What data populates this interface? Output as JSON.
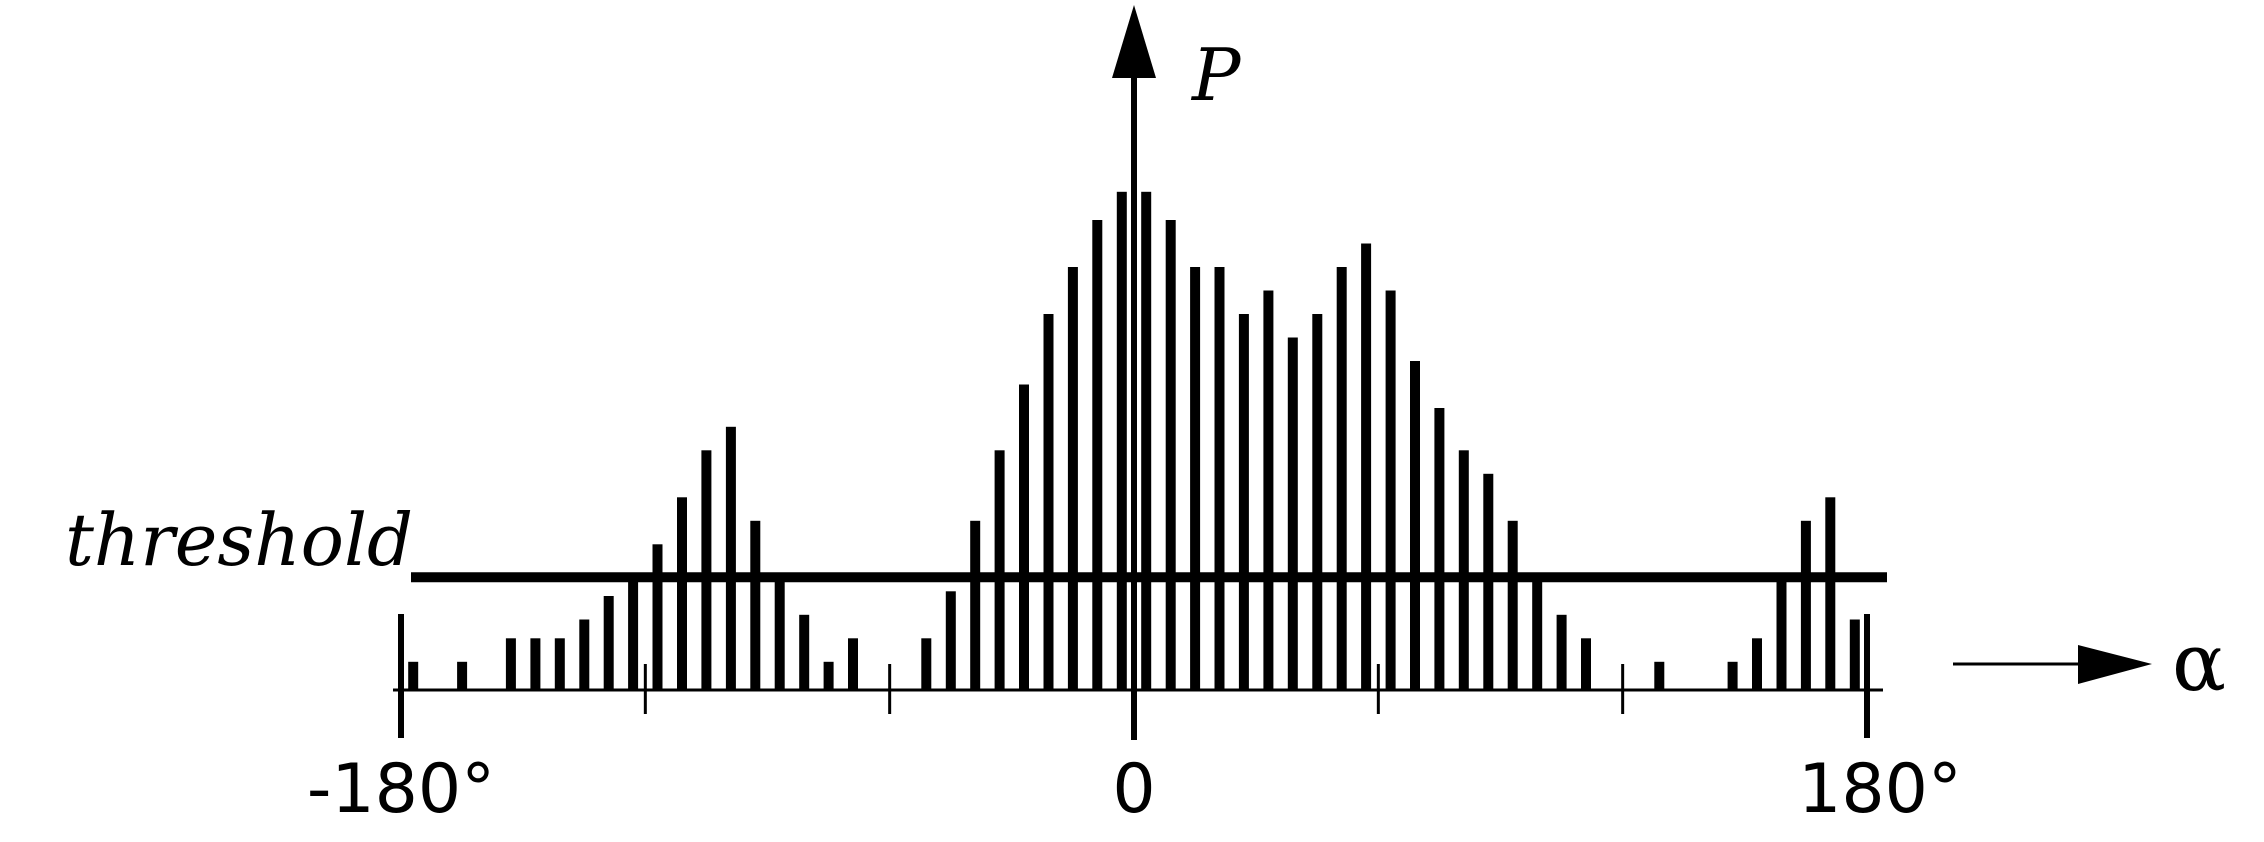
{
  "chart_data": {
    "type": "bar",
    "y_axis_label": "P",
    "x_axis_label": "α",
    "threshold_label": "threshold",
    "threshold_value": 0.24,
    "xlim": [
      -180,
      180
    ],
    "ylim": [
      0,
      1.15
    ],
    "x_tick_labels": [
      {
        "value": -180,
        "label": "-180°"
      },
      {
        "value": 0,
        "label": "0"
      },
      {
        "value": 180,
        "label": "180°"
      }
    ],
    "minor_ticks": [
      -120,
      -60,
      60,
      120
    ],
    "bars": [
      {
        "x": -177,
        "y": 0.06
      },
      {
        "x": -165,
        "y": 0.06
      },
      {
        "x": -153,
        "y": 0.11
      },
      {
        "x": -147,
        "y": 0.11
      },
      {
        "x": -141,
        "y": 0.11
      },
      {
        "x": -135,
        "y": 0.15
      },
      {
        "x": -129,
        "y": 0.2
      },
      {
        "x": -123,
        "y": 0.24
      },
      {
        "x": -117,
        "y": 0.31
      },
      {
        "x": -111,
        "y": 0.41
      },
      {
        "x": -105,
        "y": 0.51
      },
      {
        "x": -99,
        "y": 0.56
      },
      {
        "x": -93,
        "y": 0.36
      },
      {
        "x": -87,
        "y": 0.24
      },
      {
        "x": -81,
        "y": 0.16
      },
      {
        "x": -75,
        "y": 0.06
      },
      {
        "x": -69,
        "y": 0.11
      },
      {
        "x": -51,
        "y": 0.11
      },
      {
        "x": -45,
        "y": 0.21
      },
      {
        "x": -39,
        "y": 0.36
      },
      {
        "x": -33,
        "y": 0.51
      },
      {
        "x": -27,
        "y": 0.65
      },
      {
        "x": -21,
        "y": 0.8
      },
      {
        "x": -15,
        "y": 0.9
      },
      {
        "x": -9,
        "y": 1.0
      },
      {
        "x": -3,
        "y": 1.06
      },
      {
        "x": 3,
        "y": 1.06
      },
      {
        "x": 9,
        "y": 1.0
      },
      {
        "x": 15,
        "y": 0.9
      },
      {
        "x": 21,
        "y": 0.9
      },
      {
        "x": 27,
        "y": 0.8
      },
      {
        "x": 33,
        "y": 0.85
      },
      {
        "x": 39,
        "y": 0.75
      },
      {
        "x": 45,
        "y": 0.8
      },
      {
        "x": 51,
        "y": 0.9
      },
      {
        "x": 57,
        "y": 0.95
      },
      {
        "x": 63,
        "y": 0.85
      },
      {
        "x": 69,
        "y": 0.7
      },
      {
        "x": 75,
        "y": 0.6
      },
      {
        "x": 81,
        "y": 0.51
      },
      {
        "x": 87,
        "y": 0.46
      },
      {
        "x": 93,
        "y": 0.36
      },
      {
        "x": 99,
        "y": 0.24
      },
      {
        "x": 105,
        "y": 0.16
      },
      {
        "x": 111,
        "y": 0.11
      },
      {
        "x": 129,
        "y": 0.06
      },
      {
        "x": 147,
        "y": 0.06
      },
      {
        "x": 153,
        "y": 0.11
      },
      {
        "x": 159,
        "y": 0.24
      },
      {
        "x": 165,
        "y": 0.36
      },
      {
        "x": 171,
        "y": 0.41
      },
      {
        "x": 177,
        "y": 0.15
      }
    ]
  }
}
